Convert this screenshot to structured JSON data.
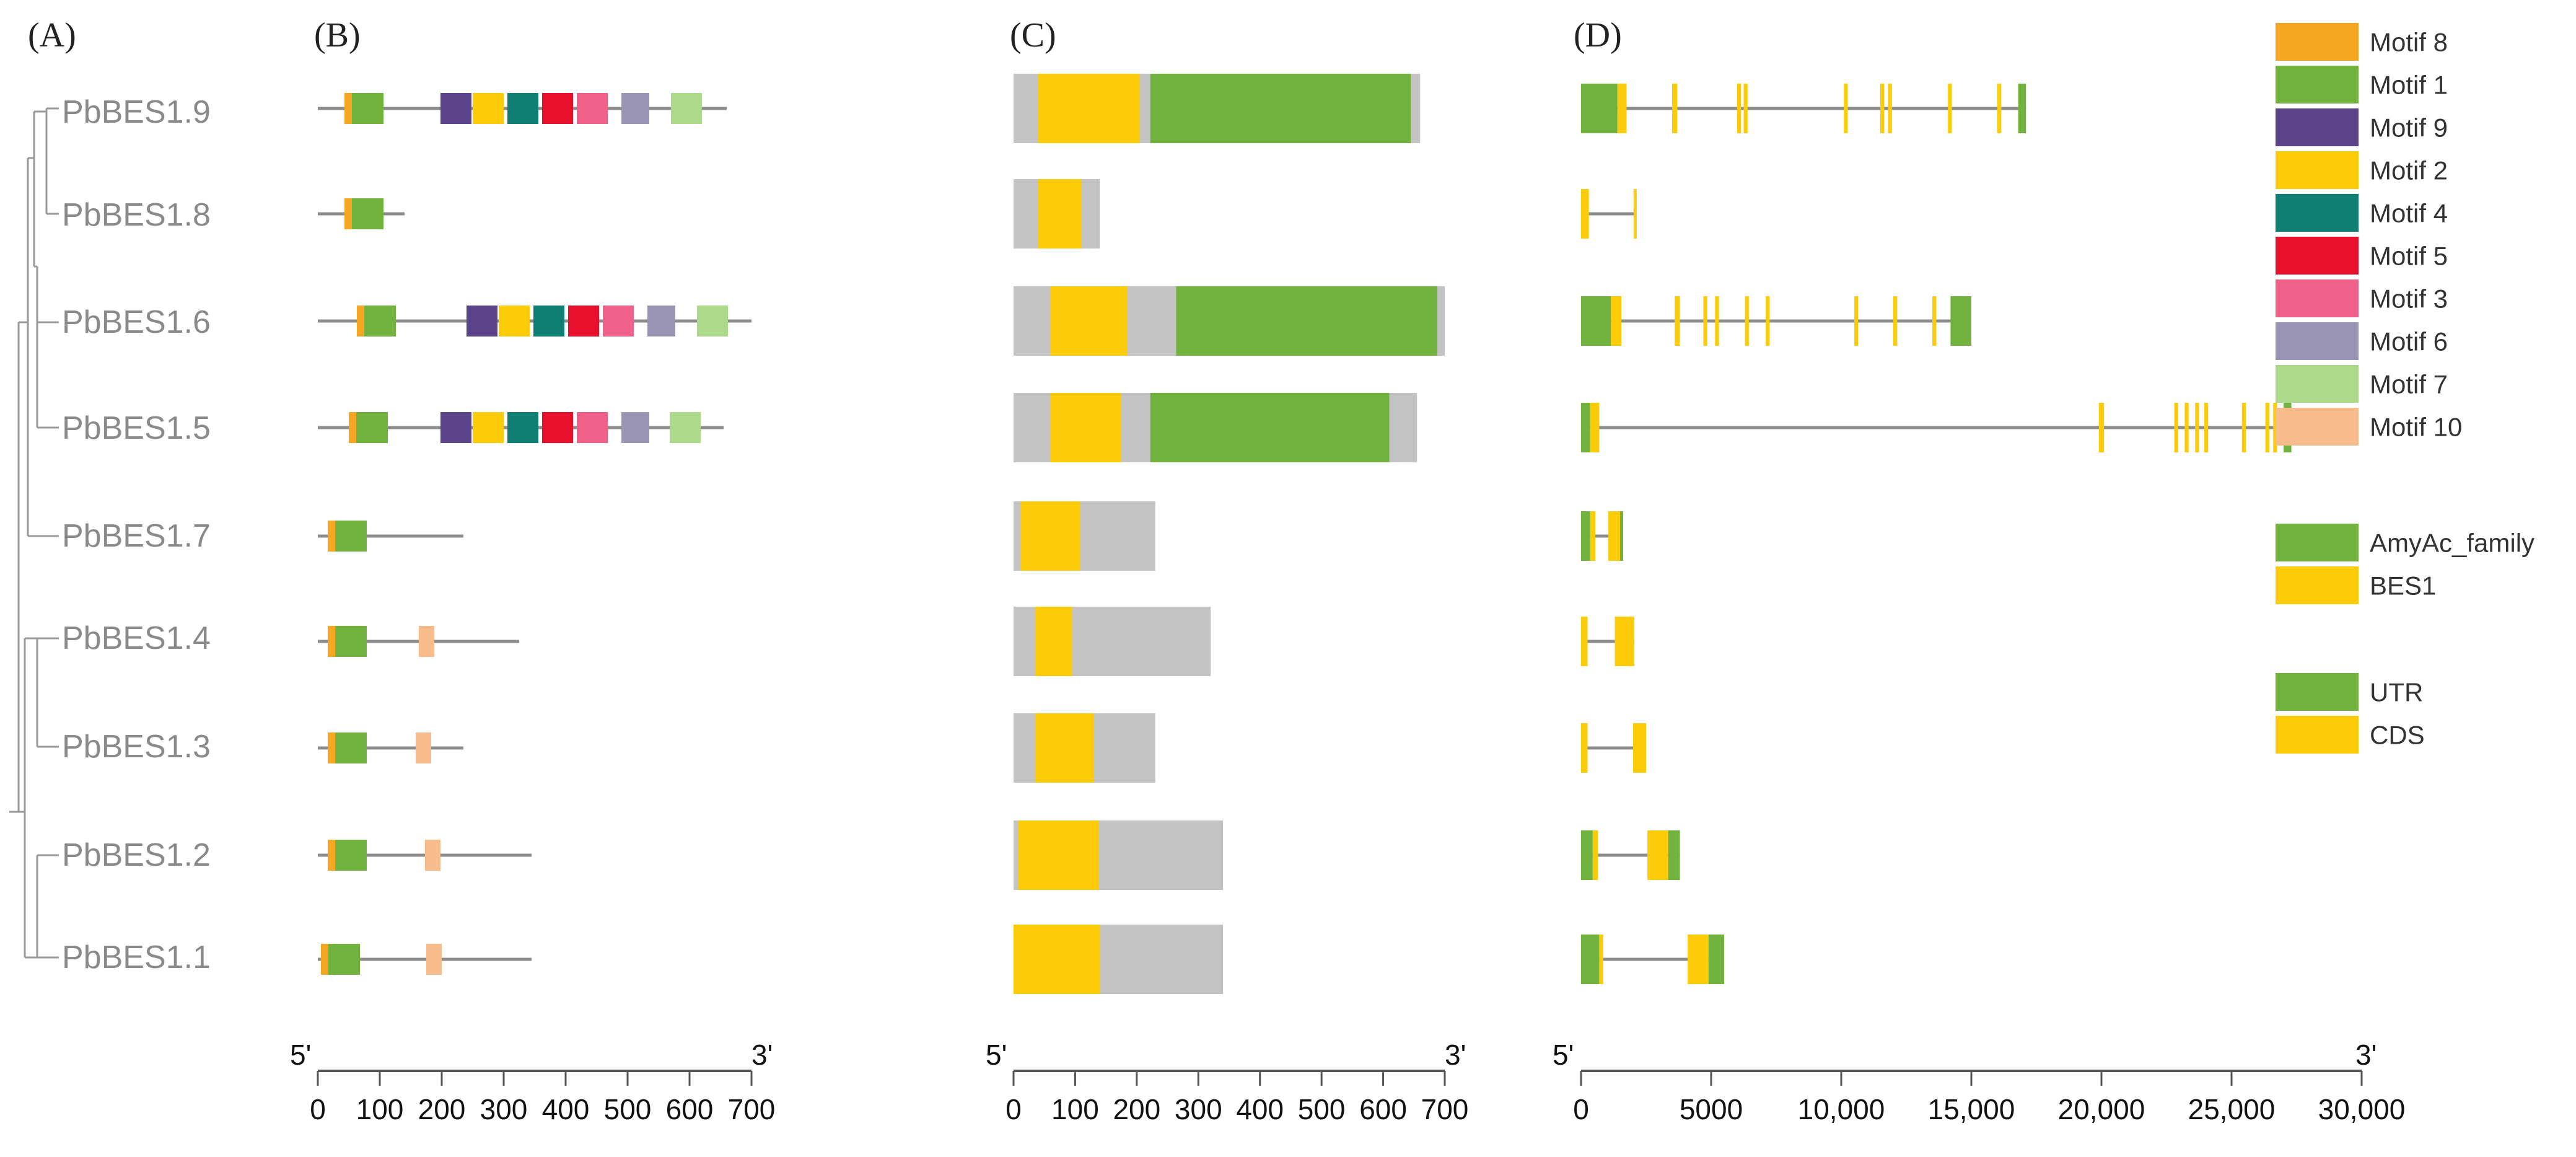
{
  "panel_labels": [
    "(A)",
    "(B)",
    "(C)",
    "(D)"
  ],
  "genes": [
    "PbBES1.9",
    "PbBES1.8",
    "PbBES1.6",
    "PbBES1.5",
    "PbBES1.7",
    "PbBES1.4",
    "PbBES1.3",
    "PbBES1.2",
    "PbBES1.1"
  ],
  "legend_motifs": [
    {
      "name": "Motif 8",
      "color": "#F5A623"
    },
    {
      "name": "Motif 1",
      "color": "#72B340"
    },
    {
      "name": "Motif 9",
      "color": "#5B4489"
    },
    {
      "name": "Motif 2",
      "color": "#FCCC0A"
    },
    {
      "name": "Motif 4",
      "color": "#0E7F72"
    },
    {
      "name": "Motif 5",
      "color": "#E8112D"
    },
    {
      "name": "Motif 3",
      "color": "#F06088"
    },
    {
      "name": "Motif 6",
      "color": "#9B95B5"
    },
    {
      "name": "Motif 7",
      "color": "#ADDA8A"
    },
    {
      "name": "Motif 10",
      "color": "#F8BC8C"
    }
  ],
  "legend_domains": [
    {
      "name": "AmyAc_family",
      "color": "#72B340"
    },
    {
      "name": "BES1",
      "color": "#FCCC0A"
    }
  ],
  "legend_structure": [
    {
      "name": "UTR",
      "color": "#72B340"
    },
    {
      "name": "CDS",
      "color": "#FCCC0A"
    }
  ],
  "axes": {
    "B": {
      "five_prime": "5'",
      "three_prime": "3'",
      "min": 0,
      "max": 700,
      "ticks": [
        0,
        100,
        200,
        300,
        400,
        500,
        600,
        700
      ],
      "tick_labels": [
        "0",
        "100",
        "200",
        "300",
        "400",
        "500",
        "600",
        "700"
      ]
    },
    "C": {
      "five_prime": "5'",
      "three_prime": "3'",
      "min": 0,
      "max": 700,
      "ticks": [
        0,
        100,
        200,
        300,
        400,
        500,
        600,
        700
      ],
      "tick_labels": [
        "0",
        "100",
        "200",
        "300",
        "400",
        "500",
        "600",
        "700"
      ]
    },
    "D": {
      "five_prime": "5'",
      "three_prime": "3'",
      "min": 0,
      "max": 30000,
      "ticks": [
        0,
        5000,
        10000,
        15000,
        20000,
        25000,
        30000
      ],
      "tick_labels": [
        "0",
        "5000",
        "10,000",
        "15,000",
        "20,000",
        "25,000",
        "30,000"
      ]
    }
  },
  "chart_data": [
    {
      "type": "motif-map",
      "panel": "(B)",
      "unit": "aa",
      "proteins": [
        {
          "gene": "PbBES1.9",
          "length": 660,
          "motifs": [
            {
              "motif": "Motif 8",
              "start": 43,
              "end": 55
            },
            {
              "motif": "Motif 1",
              "start": 55,
              "end": 106
            },
            {
              "motif": "Motif 9",
              "start": 198,
              "end": 248
            },
            {
              "motif": "Motif 2",
              "start": 250,
              "end": 300
            },
            {
              "motif": "Motif 4",
              "start": 306,
              "end": 356
            },
            {
              "motif": "Motif 5",
              "start": 362,
              "end": 412
            },
            {
              "motif": "Motif 3",
              "start": 418,
              "end": 468
            },
            {
              "motif": "Motif 6",
              "start": 490,
              "end": 535
            },
            {
              "motif": "Motif 7",
              "start": 570,
              "end": 620
            }
          ]
        },
        {
          "gene": "PbBES1.8",
          "length": 140,
          "motifs": [
            {
              "motif": "Motif 8",
              "start": 43,
              "end": 55
            },
            {
              "motif": "Motif 1",
              "start": 55,
              "end": 106
            }
          ]
        },
        {
          "gene": "PbBES1.6",
          "length": 700,
          "motifs": [
            {
              "motif": "Motif 8",
              "start": 63,
              "end": 75
            },
            {
              "motif": "Motif 1",
              "start": 75,
              "end": 126
            },
            {
              "motif": "Motif 9",
              "start": 240,
              "end": 290
            },
            {
              "motif": "Motif 2",
              "start": 292,
              "end": 342
            },
            {
              "motif": "Motif 4",
              "start": 348,
              "end": 398
            },
            {
              "motif": "Motif 5",
              "start": 404,
              "end": 454
            },
            {
              "motif": "Motif 3",
              "start": 460,
              "end": 510
            },
            {
              "motif": "Motif 6",
              "start": 532,
              "end": 577
            },
            {
              "motif": "Motif 7",
              "start": 612,
              "end": 662
            }
          ]
        },
        {
          "gene": "PbBES1.5",
          "length": 655,
          "motifs": [
            {
              "motif": "Motif 8",
              "start": 50,
              "end": 62
            },
            {
              "motif": "Motif 1",
              "start": 62,
              "end": 113
            },
            {
              "motif": "Motif 9",
              "start": 198,
              "end": 248
            },
            {
              "motif": "Motif 2",
              "start": 250,
              "end": 300
            },
            {
              "motif": "Motif 4",
              "start": 306,
              "end": 356
            },
            {
              "motif": "Motif 5",
              "start": 362,
              "end": 412
            },
            {
              "motif": "Motif 3",
              "start": 418,
              "end": 468
            },
            {
              "motif": "Motif 6",
              "start": 490,
              "end": 535
            },
            {
              "motif": "Motif 7",
              "start": 568,
              "end": 618
            }
          ]
        },
        {
          "gene": "PbBES1.7",
          "length": 235,
          "motifs": [
            {
              "motif": "Motif 8",
              "start": 16,
              "end": 28
            },
            {
              "motif": "Motif 1",
              "start": 28,
              "end": 79
            }
          ]
        },
        {
          "gene": "PbBES1.4",
          "length": 325,
          "motifs": [
            {
              "motif": "Motif 8",
              "start": 16,
              "end": 28
            },
            {
              "motif": "Motif 1",
              "start": 28,
              "end": 79
            },
            {
              "motif": "Motif 10",
              "start": 163,
              "end": 188
            }
          ]
        },
        {
          "gene": "PbBES1.3",
          "length": 235,
          "motifs": [
            {
              "motif": "Motif 8",
              "start": 16,
              "end": 28
            },
            {
              "motif": "Motif 1",
              "start": 28,
              "end": 79
            },
            {
              "motif": "Motif 10",
              "start": 158,
              "end": 183
            }
          ]
        },
        {
          "gene": "PbBES1.2",
          "length": 345,
          "motifs": [
            {
              "motif": "Motif 8",
              "start": 16,
              "end": 28
            },
            {
              "motif": "Motif 1",
              "start": 28,
              "end": 79
            },
            {
              "motif": "Motif 10",
              "start": 173,
              "end": 198
            }
          ]
        },
        {
          "gene": "PbBES1.1",
          "length": 345,
          "motifs": [
            {
              "motif": "Motif 8",
              "start": 5,
              "end": 17
            },
            {
              "motif": "Motif 1",
              "start": 17,
              "end": 68
            },
            {
              "motif": "Motif 10",
              "start": 175,
              "end": 200
            }
          ]
        }
      ]
    },
    {
      "type": "domain-map",
      "panel": "(C)",
      "unit": "aa",
      "proteins": [
        {
          "gene": "PbBES1.9",
          "length": 660,
          "domains": [
            {
              "domain": "BES1",
              "start": 40,
              "end": 205
            },
            {
              "domain": "AmyAc_family",
              "start": 222,
              "end": 645
            }
          ]
        },
        {
          "gene": "PbBES1.8",
          "length": 140,
          "domains": [
            {
              "domain": "BES1",
              "start": 40,
              "end": 110
            }
          ]
        },
        {
          "gene": "PbBES1.6",
          "length": 700,
          "domains": [
            {
              "domain": "BES1",
              "start": 60,
              "end": 185
            },
            {
              "domain": "AmyAc_family",
              "start": 264,
              "end": 688
            }
          ]
        },
        {
          "gene": "PbBES1.5",
          "length": 655,
          "domains": [
            {
              "domain": "BES1",
              "start": 60,
              "end": 175
            },
            {
              "domain": "AmyAc_family",
              "start": 222,
              "end": 610
            }
          ]
        },
        {
          "gene": "PbBES1.7",
          "length": 230,
          "domains": [
            {
              "domain": "BES1",
              "start": 12,
              "end": 108
            }
          ]
        },
        {
          "gene": "PbBES1.4",
          "length": 320,
          "domains": [
            {
              "domain": "BES1",
              "start": 35,
              "end": 95
            }
          ]
        },
        {
          "gene": "PbBES1.3",
          "length": 230,
          "domains": [
            {
              "domain": "BES1",
              "start": 35,
              "end": 130
            }
          ]
        },
        {
          "gene": "PbBES1.2",
          "length": 340,
          "domains": [
            {
              "domain": "BES1",
              "start": 8,
              "end": 138
            }
          ]
        },
        {
          "gene": "PbBES1.1",
          "length": 340,
          "domains": [
            {
              "domain": "BES1",
              "start": 0,
              "end": 140
            }
          ]
        }
      ]
    },
    {
      "type": "gene-structure",
      "panel": "(D)",
      "unit": "bp",
      "genes": [
        {
          "gene": "PbBES1.9",
          "length": 17100,
          "features": [
            {
              "kind": "UTR",
              "start": 0,
              "end": 1400
            },
            {
              "kind": "CDS",
              "start": 1400,
              "end": 1750
            },
            {
              "kind": "CDS",
              "start": 3500,
              "end": 3700
            },
            {
              "kind": "CDS",
              "start": 6000,
              "end": 6150
            },
            {
              "kind": "CDS",
              "start": 6250,
              "end": 6400
            },
            {
              "kind": "CDS",
              "start": 10100,
              "end": 10250
            },
            {
              "kind": "CDS",
              "start": 11500,
              "end": 11650
            },
            {
              "kind": "CDS",
              "start": 11800,
              "end": 11950
            },
            {
              "kind": "CDS",
              "start": 14100,
              "end": 14250
            },
            {
              "kind": "CDS",
              "start": 16000,
              "end": 16150
            },
            {
              "kind": "UTR",
              "start": 16800,
              "end": 17100
            }
          ]
        },
        {
          "gene": "PbBES1.8",
          "length": 2100,
          "features": [
            {
              "kind": "CDS",
              "start": 0,
              "end": 300
            },
            {
              "kind": "CDS",
              "start": 2020,
              "end": 2100
            }
          ]
        },
        {
          "gene": "PbBES1.6",
          "length": 15000,
          "features": [
            {
              "kind": "UTR",
              "start": 0,
              "end": 1150
            },
            {
              "kind": "CDS",
              "start": 1150,
              "end": 1550
            },
            {
              "kind": "CDS",
              "start": 3600,
              "end": 3800
            },
            {
              "kind": "CDS",
              "start": 4700,
              "end": 4850
            },
            {
              "kind": "CDS",
              "start": 5150,
              "end": 5300
            },
            {
              "kind": "CDS",
              "start": 6300,
              "end": 6450
            },
            {
              "kind": "CDS",
              "start": 7100,
              "end": 7250
            },
            {
              "kind": "CDS",
              "start": 10500,
              "end": 10650
            },
            {
              "kind": "CDS",
              "start": 12000,
              "end": 12150
            },
            {
              "kind": "CDS",
              "start": 13500,
              "end": 13650
            },
            {
              "kind": "UTR",
              "start": 14200,
              "end": 15000
            }
          ]
        },
        {
          "gene": "PbBES1.5",
          "length": 27300,
          "features": [
            {
              "kind": "UTR",
              "start": 0,
              "end": 350
            },
            {
              "kind": "CDS",
              "start": 350,
              "end": 700
            },
            {
              "kind": "CDS",
              "start": 19900,
              "end": 20100
            },
            {
              "kind": "CDS",
              "start": 22800,
              "end": 22950
            },
            {
              "kind": "CDS",
              "start": 23200,
              "end": 23350
            },
            {
              "kind": "CDS",
              "start": 23600,
              "end": 23750
            },
            {
              "kind": "CDS",
              "start": 23950,
              "end": 24100
            },
            {
              "kind": "CDS",
              "start": 25400,
              "end": 25550
            },
            {
              "kind": "CDS",
              "start": 26300,
              "end": 26450
            },
            {
              "kind": "CDS",
              "start": 26600,
              "end": 26750
            },
            {
              "kind": "UTR",
              "start": 27000,
              "end": 27300
            }
          ]
        },
        {
          "gene": "PbBES1.7",
          "length": 1600,
          "features": [
            {
              "kind": "UTR",
              "start": 0,
              "end": 350
            },
            {
              "kind": "CDS",
              "start": 350,
              "end": 550
            },
            {
              "kind": "CDS",
              "start": 1050,
              "end": 1500
            },
            {
              "kind": "UTR",
              "start": 1500,
              "end": 1600
            }
          ]
        },
        {
          "gene": "PbBES1.4",
          "length": 2050,
          "features": [
            {
              "kind": "CDS",
              "start": 0,
              "end": 250
            },
            {
              "kind": "CDS",
              "start": 1300,
              "end": 2050
            }
          ]
        },
        {
          "gene": "PbBES1.3",
          "length": 2500,
          "features": [
            {
              "kind": "CDS",
              "start": 0,
              "end": 250
            },
            {
              "kind": "CDS",
              "start": 2000,
              "end": 2500
            }
          ]
        },
        {
          "gene": "PbBES1.2",
          "length": 3800,
          "features": [
            {
              "kind": "UTR",
              "start": 0,
              "end": 450
            },
            {
              "kind": "CDS",
              "start": 450,
              "end": 650
            },
            {
              "kind": "CDS",
              "start": 2550,
              "end": 3350
            },
            {
              "kind": "UTR",
              "start": 3350,
              "end": 3800
            }
          ]
        },
        {
          "gene": "PbBES1.1",
          "length": 5500,
          "features": [
            {
              "kind": "UTR",
              "start": 0,
              "end": 700
            },
            {
              "kind": "CDS",
              "start": 700,
              "end": 850
            },
            {
              "kind": "CDS",
              "start": 4100,
              "end": 4900
            },
            {
              "kind": "UTR",
              "start": 4900,
              "end": 5500
            }
          ]
        }
      ]
    }
  ]
}
